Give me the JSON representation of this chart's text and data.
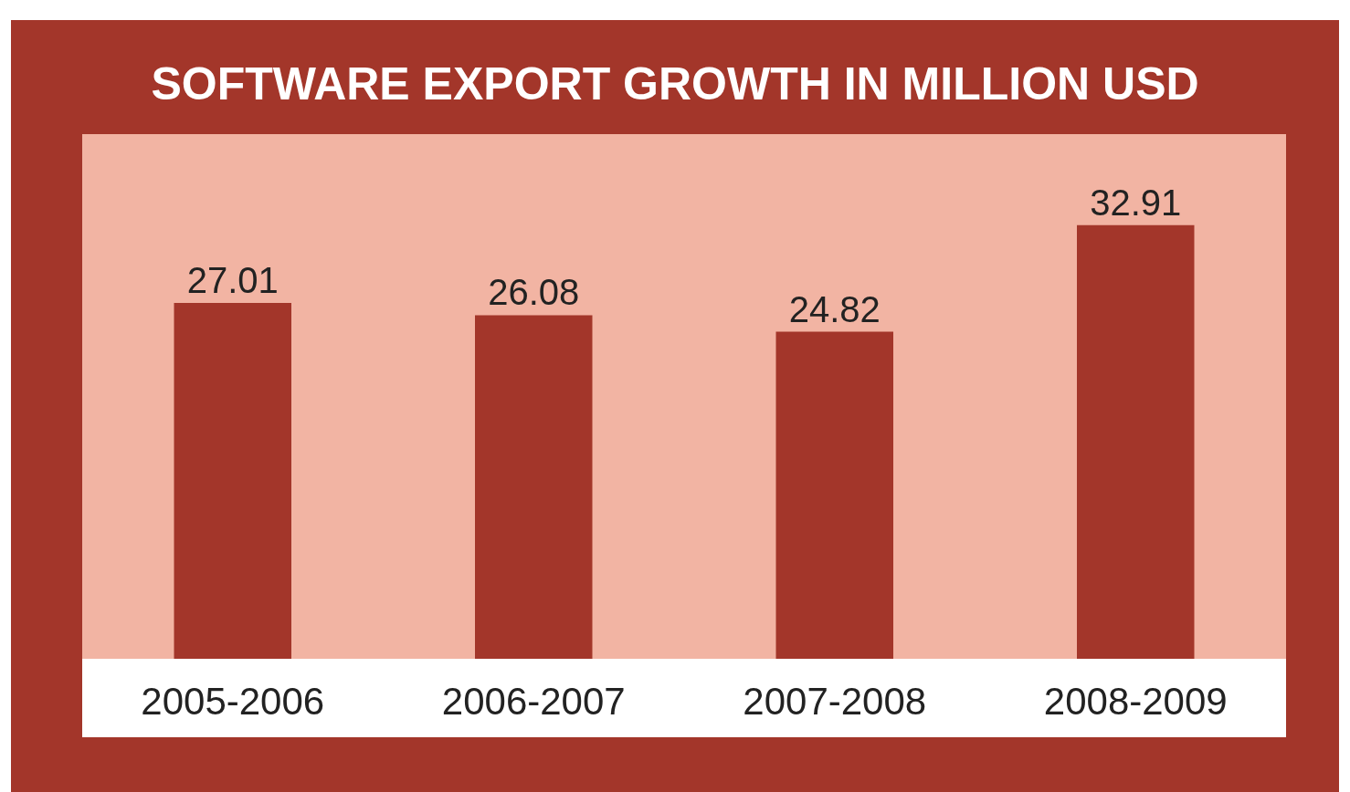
{
  "chart_data": {
    "type": "bar",
    "title": "SOFTWARE EXPORT GROWTH IN MILLION USD",
    "categories": [
      "2005-2006",
      "2006-2007",
      "2007-2008",
      "2008-2009"
    ],
    "values": [
      27.01,
      26.08,
      24.82,
      32.91
    ],
    "color": "#a3362a",
    "data_labels": true
  }
}
